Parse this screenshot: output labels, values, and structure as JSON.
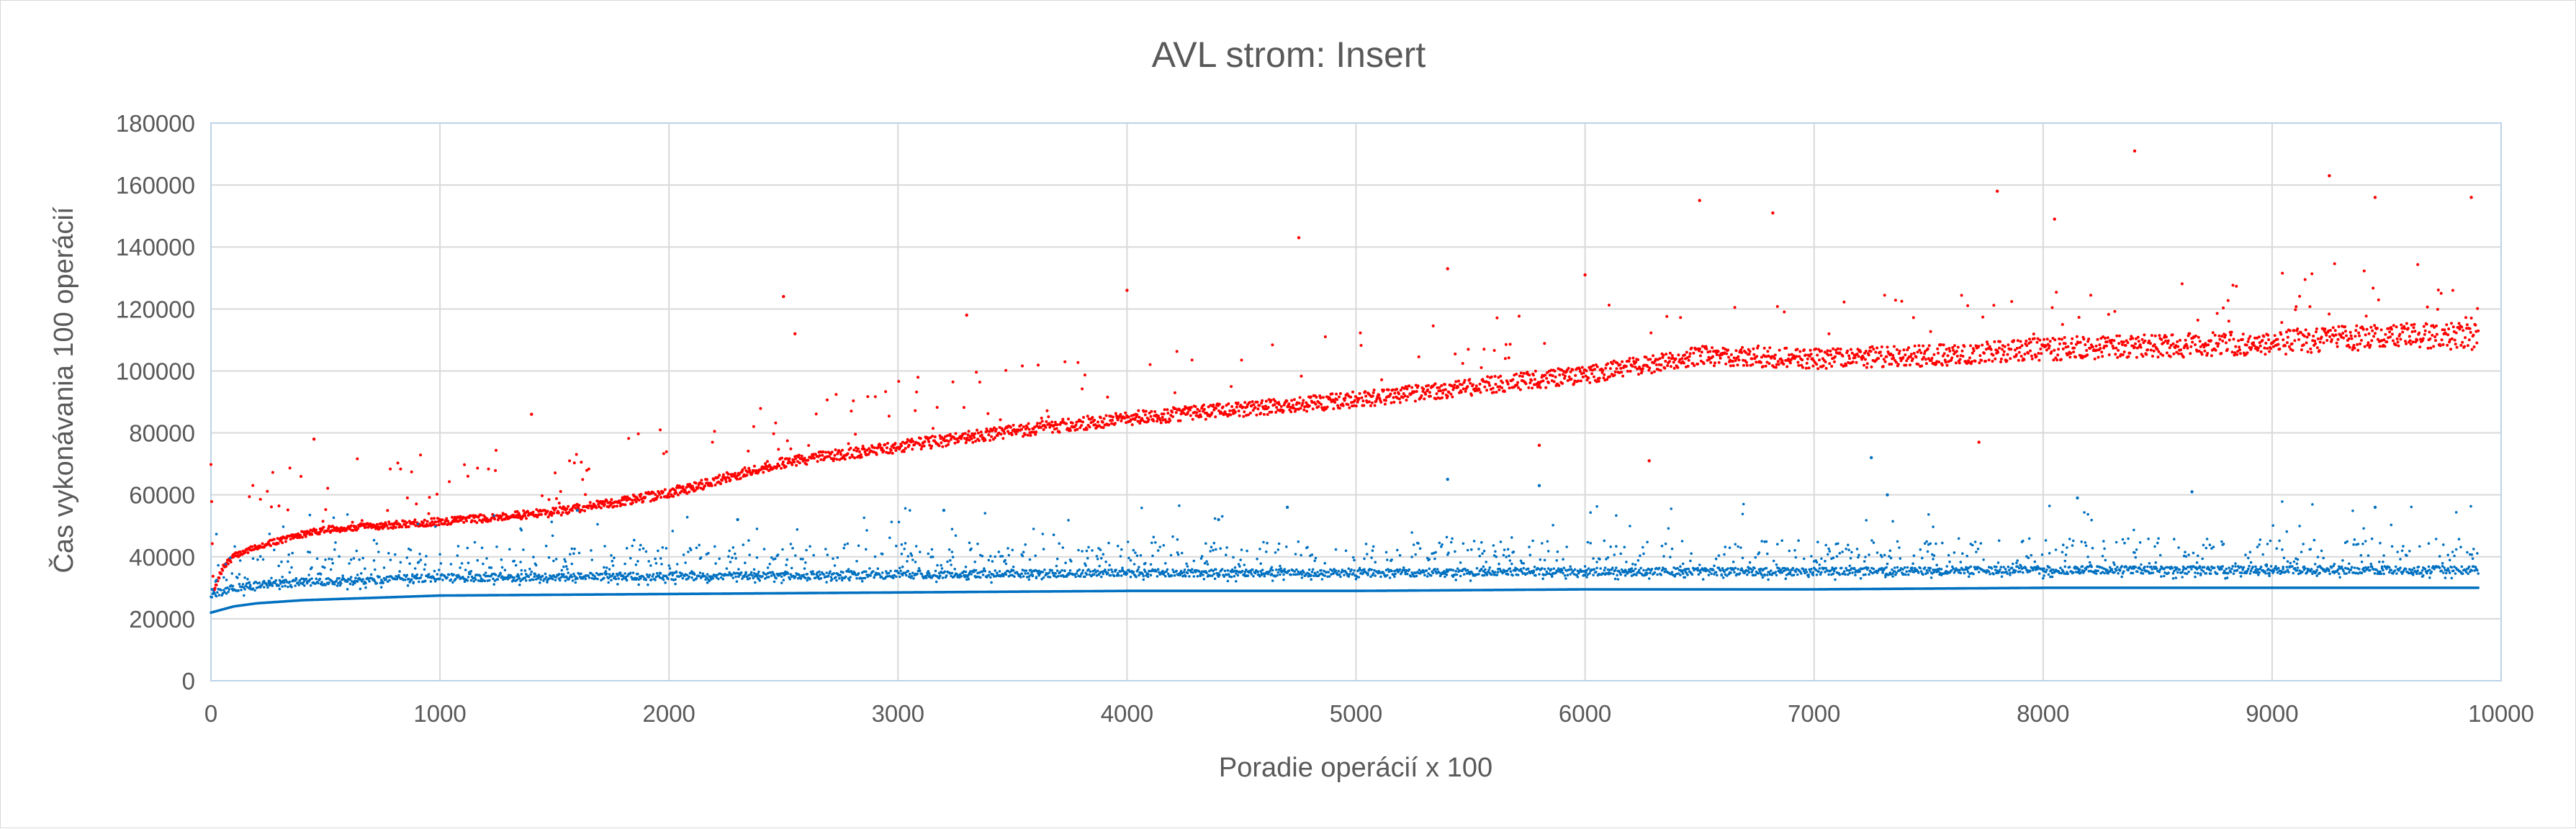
{
  "chart_data": {
    "type": "scatter",
    "title": "AVL strom: Insert",
    "xlabel": "Poradie operácií x 100",
    "ylabel": "Čas vykonávania 100 operácií",
    "xlim": [
      0,
      10000
    ],
    "ylim": [
      0,
      180000
    ],
    "x_ticks": [
      0,
      1000,
      2000,
      3000,
      4000,
      5000,
      6000,
      7000,
      8000,
      9000,
      10000
    ],
    "y_ticks": [
      0,
      20000,
      40000,
      60000,
      80000,
      100000,
      120000,
      140000,
      160000,
      180000
    ],
    "grid": true,
    "legend": "none",
    "series": [
      {
        "color": "#ff0000",
        "points": [
          [
            0,
            70000
          ],
          [
            10,
            28000
          ],
          [
            50,
            36000
          ],
          [
            100,
            40000
          ],
          [
            200,
            43000
          ],
          [
            300,
            45000
          ],
          [
            400,
            47000
          ],
          [
            500,
            48500
          ],
          [
            700,
            49500
          ],
          [
            1000,
            51000
          ],
          [
            1500,
            54000
          ],
          [
            2000,
            60000
          ],
          [
            2500,
            70000
          ],
          [
            3000,
            75000
          ],
          [
            3500,
            80000
          ],
          [
            4000,
            84000
          ],
          [
            4500,
            87000
          ],
          [
            5000,
            90000
          ],
          [
            5500,
            94000
          ],
          [
            6000,
            98000
          ],
          [
            6500,
            104000
          ],
          [
            7000,
            103000
          ],
          [
            7500,
            104000
          ],
          [
            8000,
            106000
          ],
          [
            8500,
            107000
          ],
          [
            9000,
            108000
          ],
          [
            9500,
            110000
          ],
          [
            9900,
            110000
          ]
        ],
        "outliers": [
          [
            450,
            78000
          ],
          [
            1400,
            86000
          ],
          [
            2500,
            124000
          ],
          [
            2550,
            112000
          ],
          [
            3300,
            118000
          ],
          [
            4000,
            126000
          ],
          [
            4750,
            143000
          ],
          [
            5400,
            133000
          ],
          [
            6000,
            131000
          ],
          [
            6500,
            155000
          ],
          [
            6820,
            151000
          ],
          [
            7800,
            158000
          ],
          [
            8050,
            149000
          ],
          [
            8400,
            171000
          ],
          [
            9250,
            163000
          ],
          [
            9450,
            156000
          ],
          [
            9870,
            156000
          ],
          [
            5800,
            76000
          ],
          [
            7720,
            77000
          ],
          [
            6280,
            71000
          ]
        ]
      },
      {
        "color": "#0070c0",
        "points": [
          [
            0,
            22000
          ],
          [
            50,
            23000
          ],
          [
            100,
            24000
          ],
          [
            200,
            25000
          ],
          [
            400,
            26000
          ],
          [
            800,
            27000
          ],
          [
            1000,
            27500
          ],
          [
            2000,
            28000
          ],
          [
            3000,
            28500
          ],
          [
            4000,
            29000
          ],
          [
            5000,
            29000
          ],
          [
            6000,
            29500
          ],
          [
            7000,
            29500
          ],
          [
            8000,
            30000
          ],
          [
            9000,
            30000
          ],
          [
            9900,
            30000
          ]
        ],
        "outliers": [
          [
            5400,
            65000
          ],
          [
            5800,
            63000
          ],
          [
            7250,
            72000
          ],
          [
            8650,
            61000
          ],
          [
            8150,
            59000
          ],
          [
            7320,
            60000
          ],
          [
            1600,
            55000
          ],
          [
            2300,
            52000
          ],
          [
            3200,
            55000
          ],
          [
            4400,
            52000
          ],
          [
            9450,
            56000
          ],
          [
            4700,
            56000
          ]
        ]
      }
    ]
  }
}
